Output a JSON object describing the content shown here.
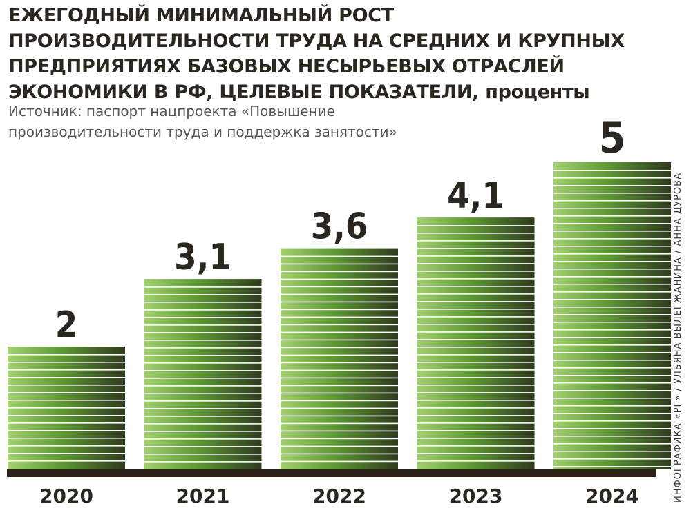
{
  "header": {
    "title": "ЕЖЕГОДНЫЙ МИНИМАЛЬНЫЙ РОСТ ПРОИЗВОДИТЕЛЬНОСТИ ТРУДА НА СРЕДНИХ И КРУПНЫХ ПРЕДПРИЯТИЯХ БАЗОВЫХ НЕСЫРЬЕВЫХ ОТРАСЛЕЙ ЭКОНОМИКИ В РФ, ЦЕЛЕВЫЕ ПОКАЗАТЕЛИ,",
    "unit": "проценты",
    "source": "Источник: паспорт нацпроекта «Повышение производительности труда и поддержка занятости»",
    "credit": "ИНФОГРАФИКА «РГ» / УЛЬЯНА ВЫЛЕГЖАНИНА / АННА ДУРОВА"
  },
  "colors": {
    "bar_light": "#a3d070",
    "bar_mid": "#5e9a34",
    "bar_dark": "#2f3a1e",
    "stripe": "#ffffff",
    "baseline": "#2b2118",
    "text": "#2a2620"
  },
  "chart_data": {
    "type": "bar",
    "categories": [
      "2020",
      "2021",
      "2022",
      "2023",
      "2024"
    ],
    "values": [
      2,
      3.1,
      3.6,
      4.1,
      5
    ],
    "value_labels": [
      "2",
      "3,1",
      "3,6",
      "4,1",
      "5"
    ],
    "ylim": [
      0,
      5
    ],
    "grid": false,
    "legend": "none"
  }
}
